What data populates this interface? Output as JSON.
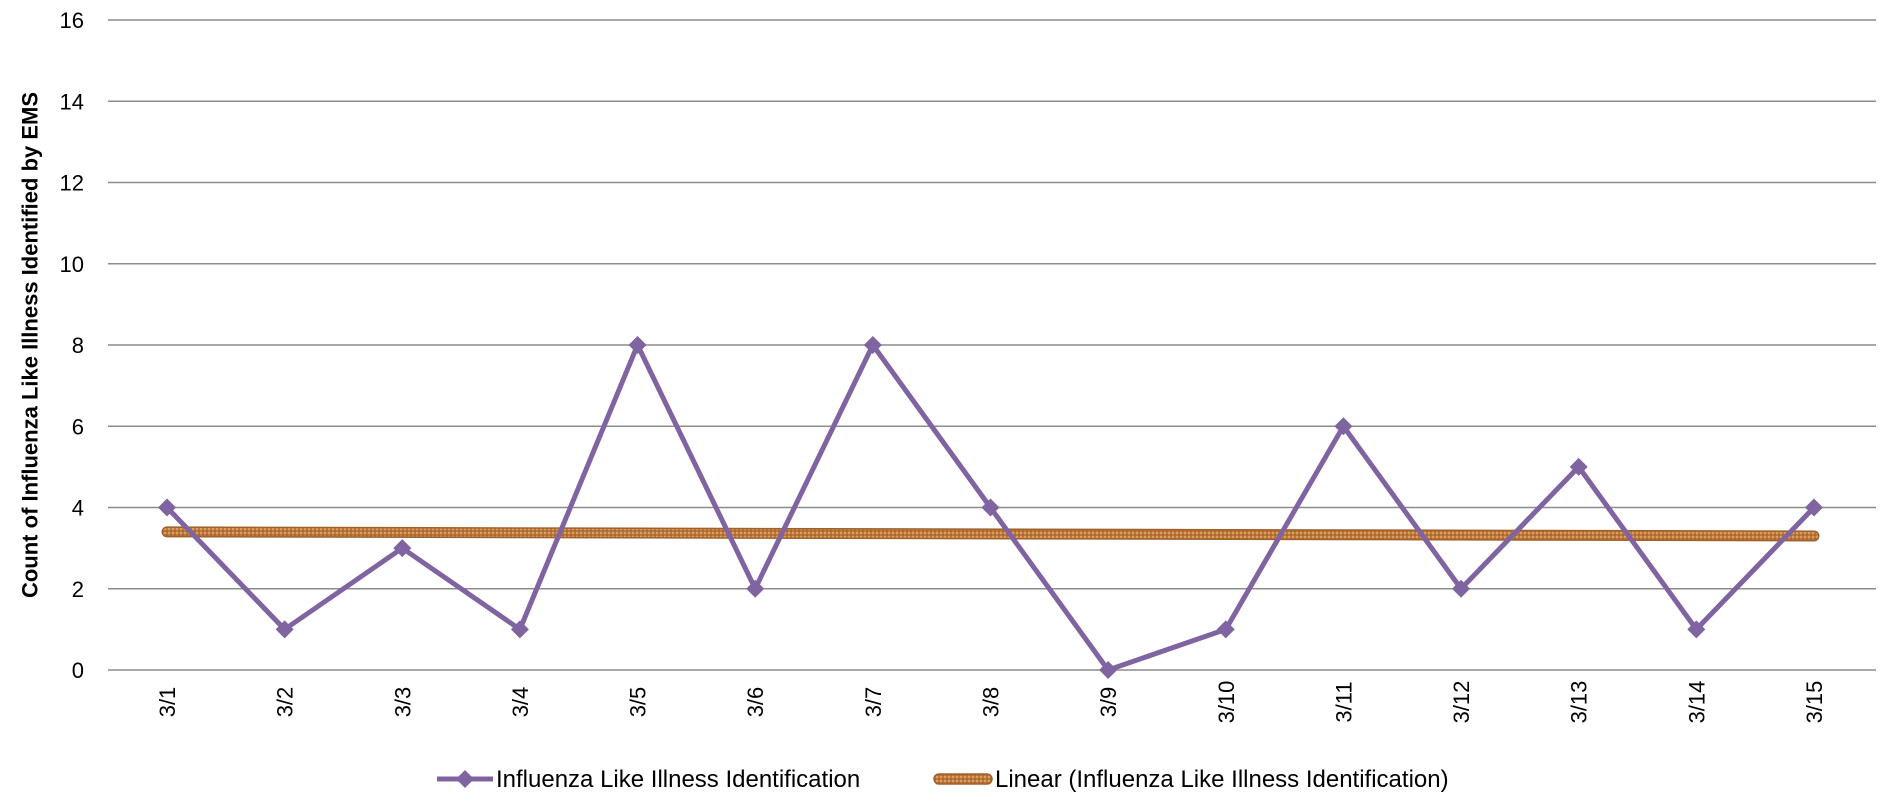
{
  "chart_data": {
    "type": "line",
    "categories": [
      "3/1",
      "3/2",
      "3/3",
      "3/4",
      "3/5",
      "3/6",
      "3/7",
      "3/8",
      "3/9",
      "3/10",
      "3/11",
      "3/12",
      "3/13",
      "3/14",
      "3/15"
    ],
    "series": [
      {
        "name": "Influenza Like Illness Identification",
        "values": [
          4,
          1,
          3,
          1,
          8,
          2,
          8,
          4,
          0,
          1,
          6,
          2,
          5,
          1,
          4
        ],
        "color": "#8064a2",
        "marker": "diamond"
      }
    ],
    "trendline": {
      "name": "Linear (Influenza Like Illness Identification)",
      "type": "linear",
      "start": 3.4,
      "end": 3.3,
      "color": "#c0783a"
    },
    "ylabel": "Count of Influenza Like Illness  Identified by EMS",
    "xlabel": "",
    "title": "",
    "ylim": [
      0,
      16
    ],
    "yticks": [
      0,
      2,
      4,
      6,
      8,
      10,
      12,
      14,
      16
    ],
    "grid": true,
    "legend_position": "bottom"
  }
}
